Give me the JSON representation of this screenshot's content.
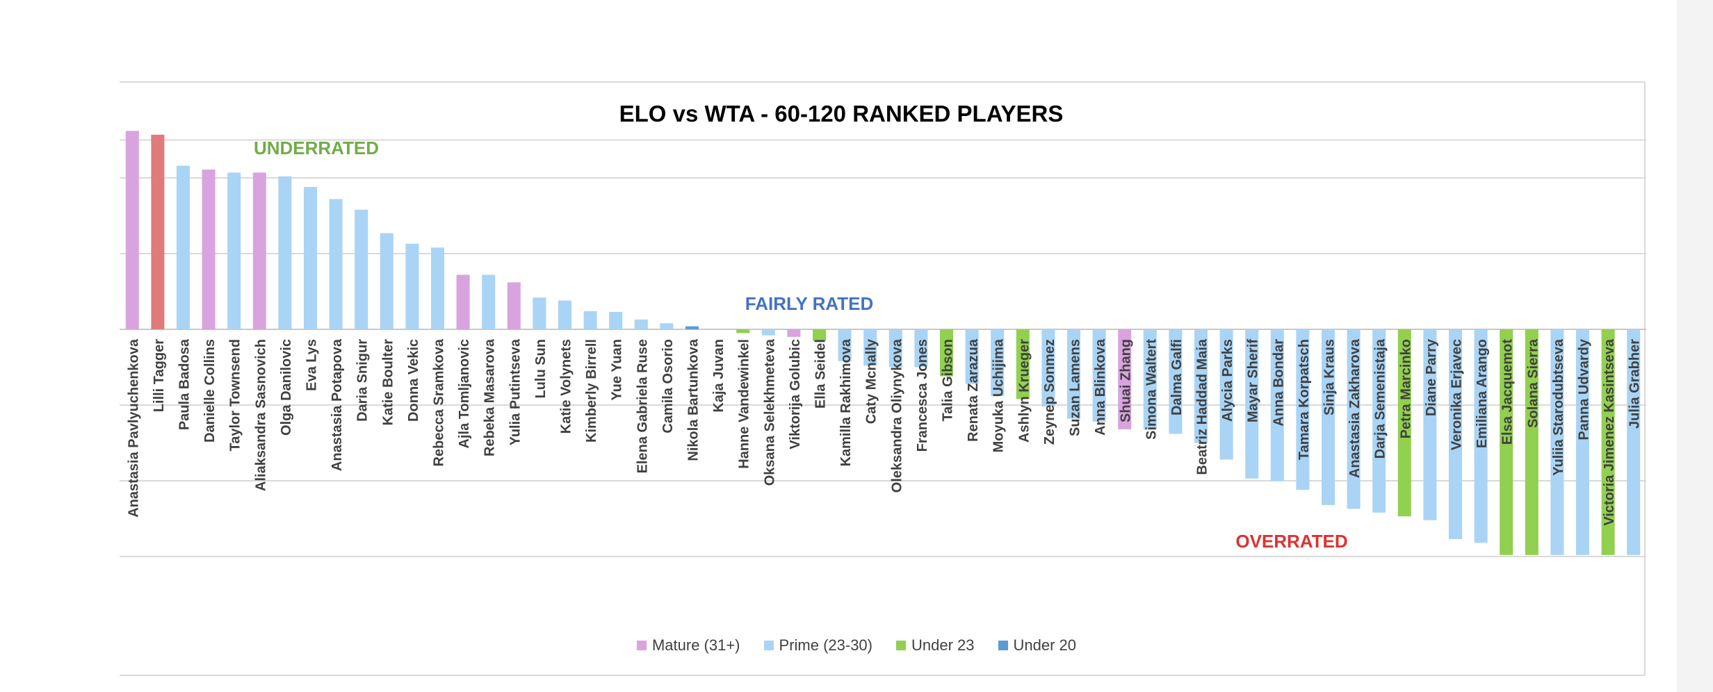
{
  "chart_data": {
    "type": "bar",
    "title": "ELO vs WTA - 60-120 RANKED PLAYERS",
    "xlabel": "",
    "ylabel": "",
    "ylim": [
      -3,
      2.6
    ],
    "grid": true,
    "legend_position": "bottom",
    "annotations": [
      {
        "text": "UNDERRATED",
        "color": "#70ad47"
      },
      {
        "text": "FAIRLY RATED",
        "color": "#4472c4"
      },
      {
        "text": "OVERRATED",
        "color": "#e03030"
      }
    ],
    "groups": [
      {
        "name": "Mature (31+)",
        "color": "#d9a3e0"
      },
      {
        "name": "Prime (23-30)",
        "color": "#a9d4f5"
      },
      {
        "name": "Under 23",
        "color": "#92d050"
      },
      {
        "name": "Under 20",
        "color": "#5b9bd5"
      }
    ],
    "highlight_color": "#e07b7b",
    "categories": [
      "Anastasia Pavlyuchenkova",
      "Lilli Tagger",
      "Paula Badosa",
      "Danielle Collins",
      "Taylor Townsend",
      "Aliaksandra Sasnovich",
      "Olga Danilovic",
      "Eva Lys",
      "Anastasia Potapova",
      "Daria Snigur",
      "Katie Boulter",
      "Donna Vekic",
      "Rebecca Sramkova",
      "Ajla Tomljanovic",
      "Rebeka Masarova",
      "Yulia Putintseva",
      "Lulu Sun",
      "Katie Volynets",
      "Kimberly Birrell",
      "Yue Yuan",
      "Elena Gabriela Ruse",
      "Camila Osorio",
      "Nikola Bartunkova",
      "Kaja Juvan",
      "Hanne Vandewinkel",
      "Oksana Selekhmeteva",
      "Viktorija Golubic",
      "Ella Seidel",
      "Kamilla Rakhimova",
      "Caty Mcnally",
      "Oleksandra Oliynykova",
      "Francesca Jones",
      "Talia Gibson",
      "Renata Zarazua",
      "Moyuka Uchijima",
      "Ashlyn Krueger",
      "Zeynep Sonmez",
      "Suzan Lamens",
      "Anna Blinkova",
      "Shuai Zhang",
      "Simona Waltert",
      "Dalma Galfi",
      "Beatriz Haddad Maia",
      "Alycia Parks",
      "Mayar Sherif",
      "Anna Bondar",
      "Tamara Korpatsch",
      "Sinja Kraus",
      "Anastasia Zakharova",
      "Darja Semenistaja",
      "Petra Marcinko",
      "Diane Parry",
      "Veronika Erjavec",
      "Emiliana Arango",
      "Elsa Jacquemot",
      "Solana Sierra",
      "Yuliia Starodubtseva",
      "Panna Udvardy",
      "Victoria Jimenez Kasintseva",
      "Julia Grabher"
    ],
    "values": [
      2.62,
      2.57,
      2.16,
      2.11,
      2.07,
      2.07,
      2.02,
      1.88,
      1.72,
      1.58,
      1.27,
      1.13,
      1.08,
      0.72,
      0.72,
      0.62,
      0.42,
      0.38,
      0.24,
      0.23,
      0.13,
      0.08,
      0.04,
      0.0,
      -0.05,
      -0.08,
      -0.1,
      -0.15,
      -0.42,
      -0.48,
      -0.5,
      -0.5,
      -0.62,
      -0.72,
      -0.88,
      -0.92,
      -1.02,
      -1.18,
      -1.22,
      -1.32,
      -1.32,
      -1.38,
      -1.5,
      -1.72,
      -1.97,
      -2.0,
      -2.12,
      -2.32,
      -2.37,
      -2.42,
      -2.47,
      -2.52,
      -2.77,
      -2.82,
      -2.98,
      -2.98,
      -2.98,
      -2.98,
      -2.98,
      -2.98
    ],
    "age_group": [
      "Mature (31+)",
      "highlight",
      "Prime (23-30)",
      "Mature (31+)",
      "Prime (23-30)",
      "Mature (31+)",
      "Prime (23-30)",
      "Prime (23-30)",
      "Prime (23-30)",
      "Prime (23-30)",
      "Prime (23-30)",
      "Prime (23-30)",
      "Prime (23-30)",
      "Mature (31+)",
      "Prime (23-30)",
      "Mature (31+)",
      "Prime (23-30)",
      "Prime (23-30)",
      "Prime (23-30)",
      "Prime (23-30)",
      "Prime (23-30)",
      "Prime (23-30)",
      "Under 20",
      "Prime (23-30)",
      "Under 23",
      "Prime (23-30)",
      "Mature (31+)",
      "Under 23",
      "Prime (23-30)",
      "Prime (23-30)",
      "Prime (23-30)",
      "Prime (23-30)",
      "Under 23",
      "Prime (23-30)",
      "Prime (23-30)",
      "Under 23",
      "Prime (23-30)",
      "Prime (23-30)",
      "Prime (23-30)",
      "Mature (31+)",
      "Prime (23-30)",
      "Prime (23-30)",
      "Prime (23-30)",
      "Prime (23-30)",
      "Prime (23-30)",
      "Prime (23-30)",
      "Prime (23-30)",
      "Prime (23-30)",
      "Prime (23-30)",
      "Prime (23-30)",
      "Under 23",
      "Prime (23-30)",
      "Prime (23-30)",
      "Prime (23-30)",
      "Under 23",
      "Under 23",
      "Prime (23-30)",
      "Prime (23-30)",
      "Under 23",
      "Prime (23-30)"
    ]
  }
}
